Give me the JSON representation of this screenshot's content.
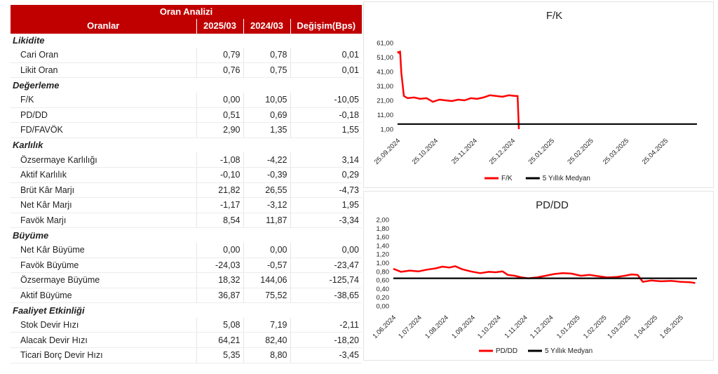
{
  "table": {
    "title": "Oran Analizi",
    "headers": [
      "Oranlar",
      "2025/03",
      "2024/03",
      "Değişim(Bps)"
    ],
    "sections": [
      {
        "name": "Likidite",
        "rows": [
          {
            "label": "Cari Oran",
            "v1": "0,79",
            "v2": "0,78",
            "chg": "0,01"
          },
          {
            "label": "Likit Oran",
            "v1": "0,76",
            "v2": "0,75",
            "chg": "0,01"
          }
        ]
      },
      {
        "name": "Değerleme",
        "rows": [
          {
            "label": "F/K",
            "v1": "0,00",
            "v2": "10,05",
            "chg": "-10,05"
          },
          {
            "label": "PD/DD",
            "v1": "0,51",
            "v2": "0,69",
            "chg": "-0,18"
          },
          {
            "label": "FD/FAVÖK",
            "v1": "2,90",
            "v2": "1,35",
            "chg": "1,55"
          }
        ]
      },
      {
        "name": "Karlılık",
        "rows": [
          {
            "label": "Özsermaye Karlılığı",
            "v1": "-1,08",
            "v2": "-4,22",
            "chg": "3,14"
          },
          {
            "label": "Aktif Karlılık",
            "v1": "-0,10",
            "v2": "-0,39",
            "chg": "0,29"
          },
          {
            "label": "Brüt Kâr Marjı",
            "v1": "21,82",
            "v2": "26,55",
            "chg": "-4,73"
          },
          {
            "label": "Net Kâr Marjı",
            "v1": "-1,17",
            "v2": "-3,12",
            "chg": "1,95"
          },
          {
            "label": "Favök Marjı",
            "v1": "8,54",
            "v2": "11,87",
            "chg": "-3,34"
          }
        ]
      },
      {
        "name": "Büyüme",
        "rows": [
          {
            "label": "Net Kâr Büyüme",
            "v1": "0,00",
            "v2": "0,00",
            "chg": "0,00"
          },
          {
            "label": "Favök Büyüme",
            "v1": "-24,03",
            "v2": "-0,57",
            "chg": "-23,47"
          },
          {
            "label": "Özsermaye Büyüme",
            "v1": "18,32",
            "v2": "144,06",
            "chg": "-125,74"
          },
          {
            "label": "Aktif Büyüme",
            "v1": "36,87",
            "v2": "75,52",
            "chg": "-38,65"
          }
        ]
      },
      {
        "name": "Faaliyet Etkinliği",
        "rows": [
          {
            "label": "Stok Devir Hızı",
            "v1": "5,08",
            "v2": "7,19",
            "chg": "-2,11"
          },
          {
            "label": "Alacak Devir Hızı",
            "v1": "64,21",
            "v2": "82,40",
            "chg": "-18,20"
          },
          {
            "label": "Ticari Borç Devir Hızı",
            "v1": "5,35",
            "v2": "8,80",
            "chg": "-3,45"
          }
        ]
      }
    ]
  },
  "chart_data": [
    {
      "type": "line",
      "title": "F/K",
      "xlabel": "",
      "ylabel": "",
      "x_ticks": [
        "25.09.2024",
        "25.10.2024",
        "25.11.2024",
        "25.12.2024",
        "25.01.2025",
        "25.02.2025",
        "25.03.2025",
        "25.04.2025"
      ],
      "y_ticks": [
        "61,00",
        "51,00",
        "41,00",
        "31,00",
        "21,00",
        "11,00",
        "1,00"
      ],
      "ylim": [
        1,
        61
      ],
      "x_range": [
        "2024-09-25",
        "2025-05-20"
      ],
      "grid": false,
      "legend_position": "bottom",
      "series": [
        {
          "name": "F/K",
          "color": "#ff0000",
          "points": [
            [
              "2024-09-25",
              55
            ],
            [
              "2024-09-26",
              54
            ],
            [
              "2024-09-27",
              55
            ],
            [
              "2024-09-28",
              40
            ],
            [
              "2024-09-30",
              24
            ],
            [
              "2024-10-03",
              22.5
            ],
            [
              "2024-10-08",
              23
            ],
            [
              "2024-10-13",
              22
            ],
            [
              "2024-10-18",
              22.5
            ],
            [
              "2024-10-23",
              20
            ],
            [
              "2024-10-28",
              21.5
            ],
            [
              "2024-11-02",
              21
            ],
            [
              "2024-11-07",
              20.5
            ],
            [
              "2024-11-12",
              21.5
            ],
            [
              "2024-11-17",
              21
            ],
            [
              "2024-11-22",
              22.5
            ],
            [
              "2024-11-27",
              22
            ],
            [
              "2024-12-02",
              23
            ],
            [
              "2024-12-07",
              24.5
            ],
            [
              "2024-12-12",
              24
            ],
            [
              "2024-12-17",
              23.5
            ],
            [
              "2024-12-22",
              24.5
            ],
            [
              "2024-12-27",
              24
            ],
            [
              "2024-12-29",
              24
            ],
            [
              "2024-12-30",
              1
            ]
          ]
        },
        {
          "name": "5 Yıllık Medyan",
          "color": "#000000",
          "points": [
            [
              "2024-09-25",
              4.5
            ],
            [
              "2025-05-20",
              4.5
            ]
          ]
        }
      ]
    },
    {
      "type": "line",
      "title": "PD/DD",
      "xlabel": "",
      "ylabel": "",
      "x_ticks": [
        "1.06.2024",
        "1.07.2024",
        "1.08.2024",
        "1.09.2024",
        "1.10.2024",
        "1.11.2024",
        "1.12.2024",
        "1.01.2025",
        "1.02.2025",
        "1.03.2025",
        "1.04.2025",
        "1.05.2025"
      ],
      "y_ticks": [
        "2,00",
        "1,80",
        "1,60",
        "1,40",
        "1,20",
        "1,00",
        "0,80",
        "0,60",
        "0,40",
        "0,20",
        "0,00"
      ],
      "ylim": [
        0,
        2
      ],
      "x_range": [
        "2024-06-01",
        "2025-05-20"
      ],
      "grid": false,
      "legend_position": "bottom",
      "series": [
        {
          "name": "PD/DD",
          "color": "#ff0000",
          "points": [
            [
              "2024-06-01",
              0.86
            ],
            [
              "2024-06-10",
              0.79
            ],
            [
              "2024-06-20",
              0.82
            ],
            [
              "2024-06-30",
              0.8
            ],
            [
              "2024-07-10",
              0.84
            ],
            [
              "2024-07-20",
              0.87
            ],
            [
              "2024-07-28",
              0.91
            ],
            [
              "2024-08-05",
              0.89
            ],
            [
              "2024-08-12",
              0.92
            ],
            [
              "2024-08-20",
              0.85
            ],
            [
              "2024-08-30",
              0.8
            ],
            [
              "2024-09-10",
              0.76
            ],
            [
              "2024-09-20",
              0.79
            ],
            [
              "2024-09-28",
              0.78
            ],
            [
              "2024-10-06",
              0.8
            ],
            [
              "2024-10-12",
              0.72
            ],
            [
              "2024-10-20",
              0.7
            ],
            [
              "2024-10-28",
              0.66
            ],
            [
              "2024-11-05",
              0.64
            ],
            [
              "2024-11-15",
              0.66
            ],
            [
              "2024-11-25",
              0.7
            ],
            [
              "2024-12-05",
              0.74
            ],
            [
              "2024-12-15",
              0.76
            ],
            [
              "2024-12-25",
              0.75
            ],
            [
              "2025-01-05",
              0.7
            ],
            [
              "2025-01-15",
              0.72
            ],
            [
              "2025-01-25",
              0.69
            ],
            [
              "2025-02-05",
              0.66
            ],
            [
              "2025-02-15",
              0.67
            ],
            [
              "2025-02-25",
              0.7
            ],
            [
              "2025-03-05",
              0.73
            ],
            [
              "2025-03-12",
              0.72
            ],
            [
              "2025-03-18",
              0.56
            ],
            [
              "2025-03-28",
              0.59
            ],
            [
              "2025-04-08",
              0.57
            ],
            [
              "2025-04-20",
              0.58
            ],
            [
              "2025-05-01",
              0.56
            ],
            [
              "2025-05-12",
              0.55
            ],
            [
              "2025-05-18",
              0.53
            ]
          ]
        },
        {
          "name": "5 Yıllık Medyan",
          "color": "#000000",
          "points": [
            [
              "2024-06-01",
              0.64
            ],
            [
              "2025-05-20",
              0.64
            ]
          ]
        }
      ]
    }
  ]
}
